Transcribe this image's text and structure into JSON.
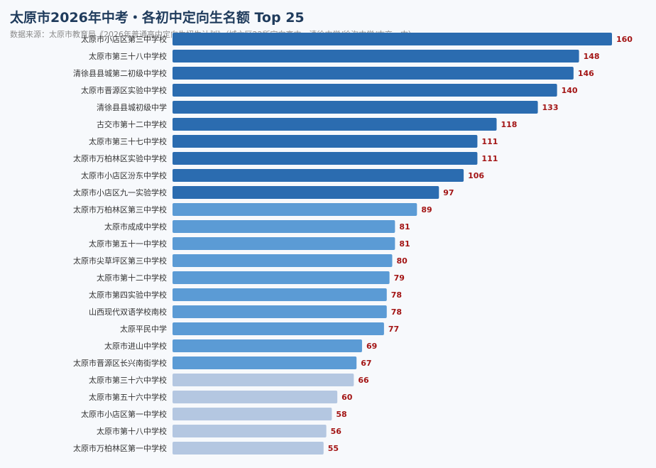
{
  "chart_data": {
    "type": "bar",
    "orientation": "horizontal",
    "title": "太原市2026年中考・各初中定向生名额 Top 25",
    "subtitle": "数据来源：太原市教育局《2026年普通高中定向生招生计划》（城六区22所定向高中，清徐中学/徐沟中学/古交一中）",
    "categories": [
      "太原市小店区第三中学校",
      "太原市第三十八中学校",
      "清徐县县城第二初级中学校",
      "太原市晋源区实验中学校",
      "清徐县县城初级中学",
      "古交市第十二中学校",
      "太原市第三十七中学校",
      "太原市万柏林区实验中学校",
      "太原市小店区汾东中学校",
      "太原市小店区九一实验学校",
      "太原市万柏林区第三中学校",
      "太原市成成中学校",
      "太原市第五十一中学校",
      "太原市尖草坪区第三中学校",
      "太原市第十二中学校",
      "太原市第四实验中学校",
      "山西现代双语学校南校",
      "太原平民中学",
      "太原市进山中学校",
      "太原市晋源区长兴南街学校",
      "太原市第三十六中学校",
      "太原市第五十六中学校",
      "太原市小店区第一中学校",
      "太原市第十八中学校",
      "太原市万柏林区第一中学校"
    ],
    "values": [
      160,
      148,
      146,
      140,
      133,
      118,
      111,
      111,
      106,
      97,
      89,
      81,
      81,
      80,
      79,
      78,
      78,
      77,
      69,
      67,
      66,
      60,
      58,
      56,
      55
    ],
    "colors": {
      "tier1": "#2b6cb0",
      "tier2": "#5b9bd5",
      "tier3": "#b4c7e1",
      "value_label": "#a31515"
    },
    "tier_breaks": [
      10,
      20
    ],
    "grid": false,
    "legend": "none"
  }
}
